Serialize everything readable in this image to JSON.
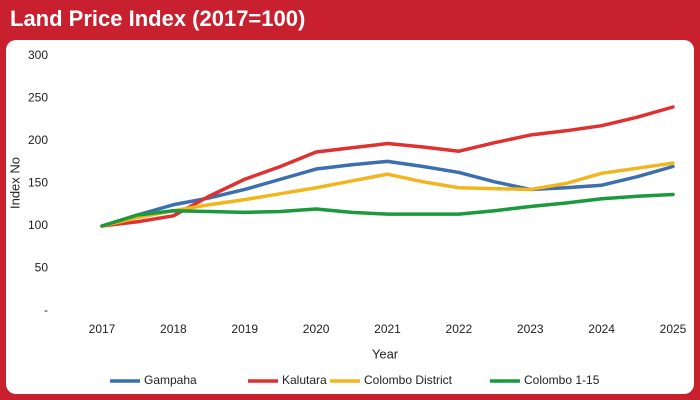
{
  "chart_data": {
    "type": "line",
    "title": "Land Price Index (2017=100)",
    "x_label": "Year",
    "y_label": "Index No",
    "x": [
      2017,
      2017.5,
      2018,
      2018.5,
      2019,
      2019.5,
      2020,
      2020.5,
      2021,
      2021.5,
      2022,
      2022.5,
      2023,
      2023.5,
      2024,
      2024.5,
      2025
    ],
    "series": [
      {
        "name": "Gampaha",
        "color": "#3b6fb0",
        "values": [
          100,
          113,
          125,
          133,
          143,
          155,
          167,
          172,
          176,
          170,
          163,
          152,
          143,
          145,
          148,
          158,
          170
        ]
      },
      {
        "name": "Kalutara",
        "color": "#e03131",
        "values": [
          100,
          105,
          112,
          135,
          155,
          170,
          187,
          192,
          197,
          193,
          188,
          198,
          207,
          212,
          218,
          228,
          240
        ]
      },
      {
        "name": "Colombo District",
        "color": "#f2b51e",
        "values": [
          100,
          110,
          118,
          125,
          131,
          138,
          145,
          153,
          161,
          152,
          145,
          144,
          143,
          150,
          162,
          168,
          174
        ]
      },
      {
        "name": "Colombo 1-15",
        "color": "#1a9a3c",
        "values": [
          100,
          113,
          118,
          117,
          116,
          117,
          120,
          116,
          114,
          114,
          114,
          118,
          123,
          127,
          132,
          135,
          137
        ]
      }
    ],
    "xlim": [
      2017,
      2025
    ],
    "xticks": [
      2017,
      2018,
      2019,
      2020,
      2021,
      2022,
      2023,
      2024,
      2025
    ],
    "ylim": [
      0,
      300
    ],
    "yticks": [
      {
        "value": 0,
        "label": "-"
      },
      50,
      100,
      150,
      200,
      250,
      300
    ],
    "grid": false,
    "legend": "bottom"
  }
}
